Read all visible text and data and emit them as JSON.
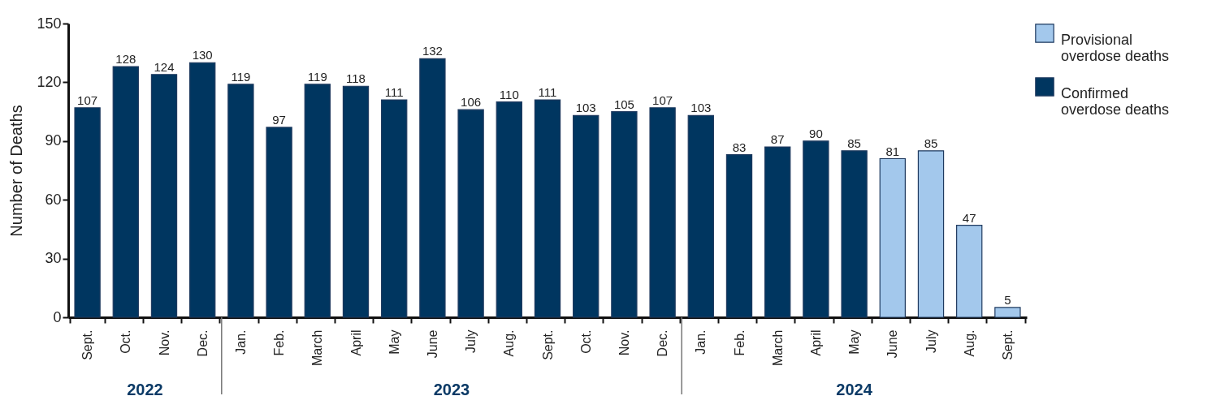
{
  "chart_data": {
    "type": "bar",
    "ylabel": "Number of Deaths",
    "categories": [
      "Sept.",
      "Oct.",
      "Nov.",
      "Dec.",
      "Jan.",
      "Feb.",
      "March",
      "April",
      "May",
      "June",
      "July",
      "Aug.",
      "Sept.",
      "Oct.",
      "Nov.",
      "Dec.",
      "Jan.",
      "Feb.",
      "March",
      "April",
      "May",
      "June",
      "July",
      "Aug.",
      "Sept."
    ],
    "series": [
      {
        "name": "Provisional overdose deaths",
        "color": "#a3c8ec",
        "values": [
          null,
          null,
          null,
          null,
          null,
          null,
          null,
          null,
          null,
          null,
          null,
          null,
          null,
          null,
          null,
          null,
          null,
          null,
          null,
          null,
          null,
          81,
          85,
          47,
          5
        ]
      },
      {
        "name": "Confirmed overdose deaths",
        "color": "#003660",
        "values": [
          107,
          128,
          124,
          130,
          119,
          97,
          119,
          118,
          111,
          132,
          106,
          110,
          111,
          103,
          105,
          107,
          103,
          83,
          87,
          90,
          85,
          null,
          null,
          null,
          null
        ]
      }
    ],
    "ylim": [
      0,
      150
    ],
    "yticks": [
      0,
      30,
      60,
      90,
      120,
      150
    ],
    "grid": false,
    "legend": "right",
    "data_labels": true,
    "annotations": [
      "2022",
      "2023",
      "2024"
    ]
  }
}
